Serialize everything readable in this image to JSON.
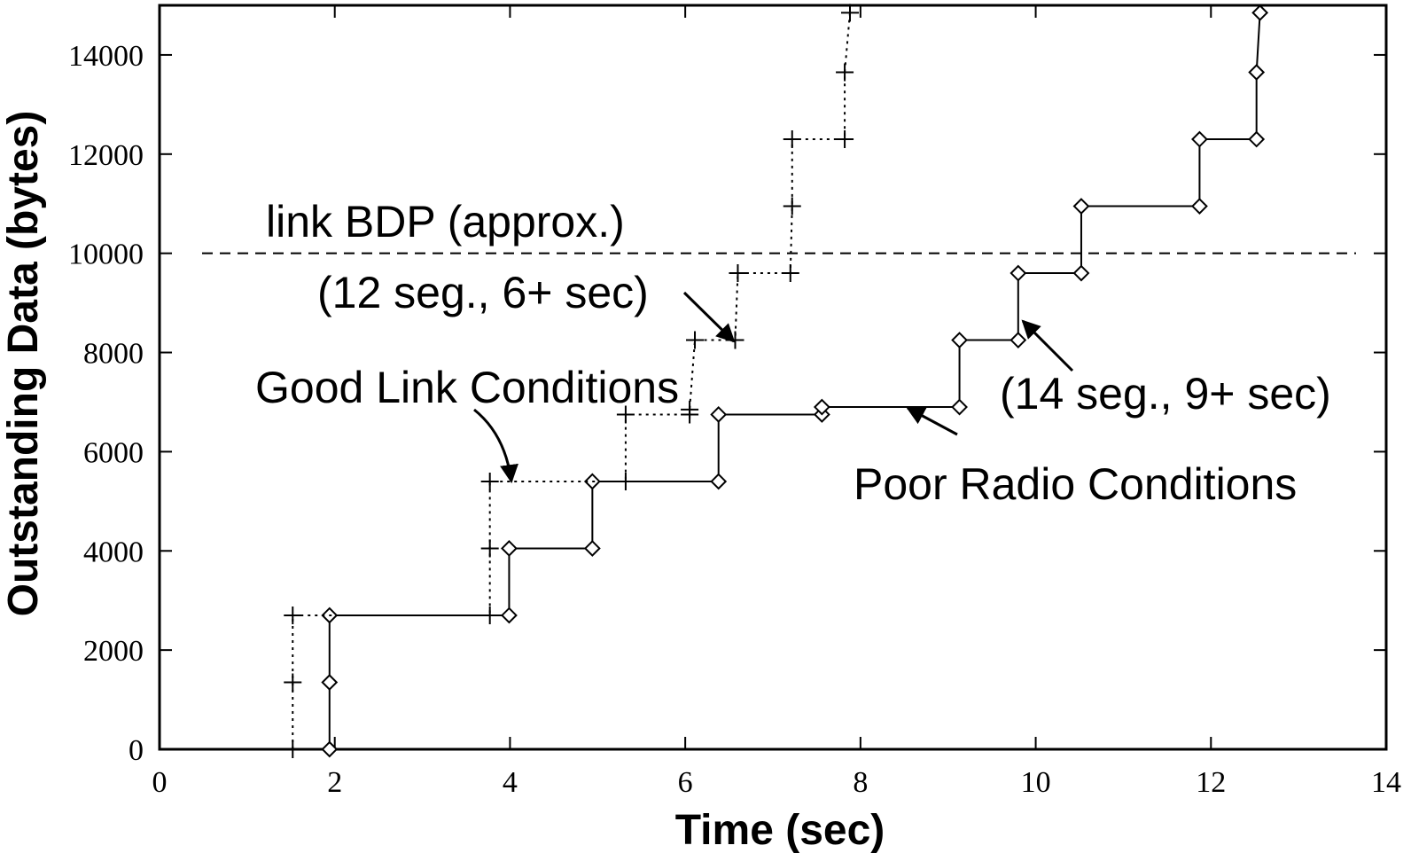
{
  "chart_data": {
    "type": "line",
    "xlabel": "Time (sec)",
    "ylabel": "Outstanding Data (bytes)",
    "xlim": [
      0,
      14
    ],
    "ylim": [
      0,
      15000
    ],
    "xticks": [
      0,
      2,
      4,
      6,
      8,
      10,
      12,
      14
    ],
    "yticks": [
      0,
      2000,
      4000,
      6000,
      8000,
      10000,
      12000,
      14000
    ],
    "grid": false,
    "series": [
      {
        "name": "Poor Radio Conditions",
        "color": "#000000",
        "marker": "diamond",
        "dash": "solid",
        "x": [
          1.94,
          1.94,
          1.94,
          3.99,
          3.99,
          4.94,
          4.94,
          6.38,
          6.38,
          7.56,
          7.56,
          9.13,
          9.13,
          9.8,
          9.8,
          10.52,
          10.52,
          11.87,
          11.87,
          12.52,
          12.52,
          12.56
        ],
        "values": [
          0,
          1350,
          2700,
          2700,
          4050,
          4050,
          5400,
          5400,
          6750,
          6750,
          6900,
          6900,
          8250,
          8250,
          9600,
          9600,
          10950,
          10950,
          12300,
          12300,
          13650,
          14850
        ]
      },
      {
        "name": "Good Link Conditions",
        "color": "#000000",
        "marker": "plus",
        "dash": "dotted",
        "x": [
          1.52,
          1.52,
          1.52,
          3.77,
          3.77,
          3.77,
          5.32,
          5.32,
          6.05,
          6.05,
          6.11,
          6.57,
          6.6,
          7.2,
          7.22,
          7.22,
          7.82,
          7.82,
          7.88
        ],
        "values": [
          0,
          1350,
          2700,
          2700,
          4050,
          5400,
          5400,
          6750,
          6750,
          6850,
          8250,
          8250,
          9600,
          9600,
          10950,
          12300,
          12300,
          13650,
          14850
        ]
      }
    ],
    "reference_line": {
      "value": 10000,
      "label": "link BDP (approx.)"
    },
    "annotations": [
      "(12 seg., 6+ sec)",
      "(14 seg., 9+ sec)"
    ]
  }
}
